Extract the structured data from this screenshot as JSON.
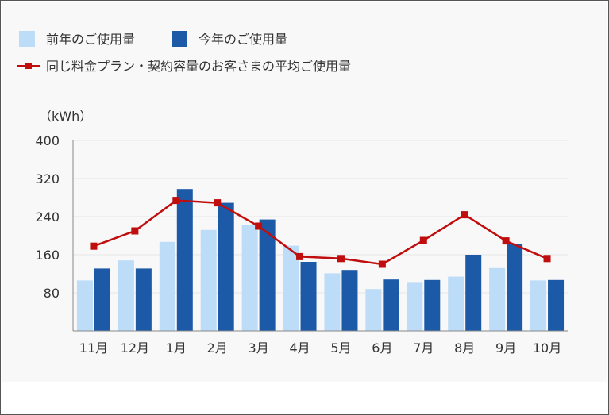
{
  "chart_data": {
    "type": "bar+line",
    "categories": [
      "11月",
      "12月",
      "1月",
      "2月",
      "3月",
      "4月",
      "5月",
      "6月",
      "7月",
      "8月",
      "9月",
      "10月"
    ],
    "series": [
      {
        "name": "前年のご使用量",
        "kind": "bar",
        "color": "#bcdcf8",
        "values": [
          106,
          148,
          187,
          212,
          223,
          179,
          121,
          88,
          101,
          114,
          132,
          106
        ]
      },
      {
        "name": "今年のご使用量",
        "kind": "bar",
        "color": "#1c5aa8",
        "values": [
          131,
          131,
          298,
          269,
          234,
          145,
          128,
          108,
          107,
          160,
          183,
          107
        ]
      },
      {
        "name": "同じ料金プラン・契約容量のお客さまの平均ご使用量",
        "kind": "line",
        "color": "#c00d0d",
        "values": [
          178,
          210,
          274,
          269,
          220,
          156,
          152,
          140,
          190,
          244,
          189,
          152
        ]
      }
    ],
    "ylabel": "（kWh）",
    "ylim": [
      0,
      400
    ],
    "yticks": [
      80,
      160,
      240,
      320,
      400
    ],
    "grid": true,
    "legend_position": "top-left"
  }
}
